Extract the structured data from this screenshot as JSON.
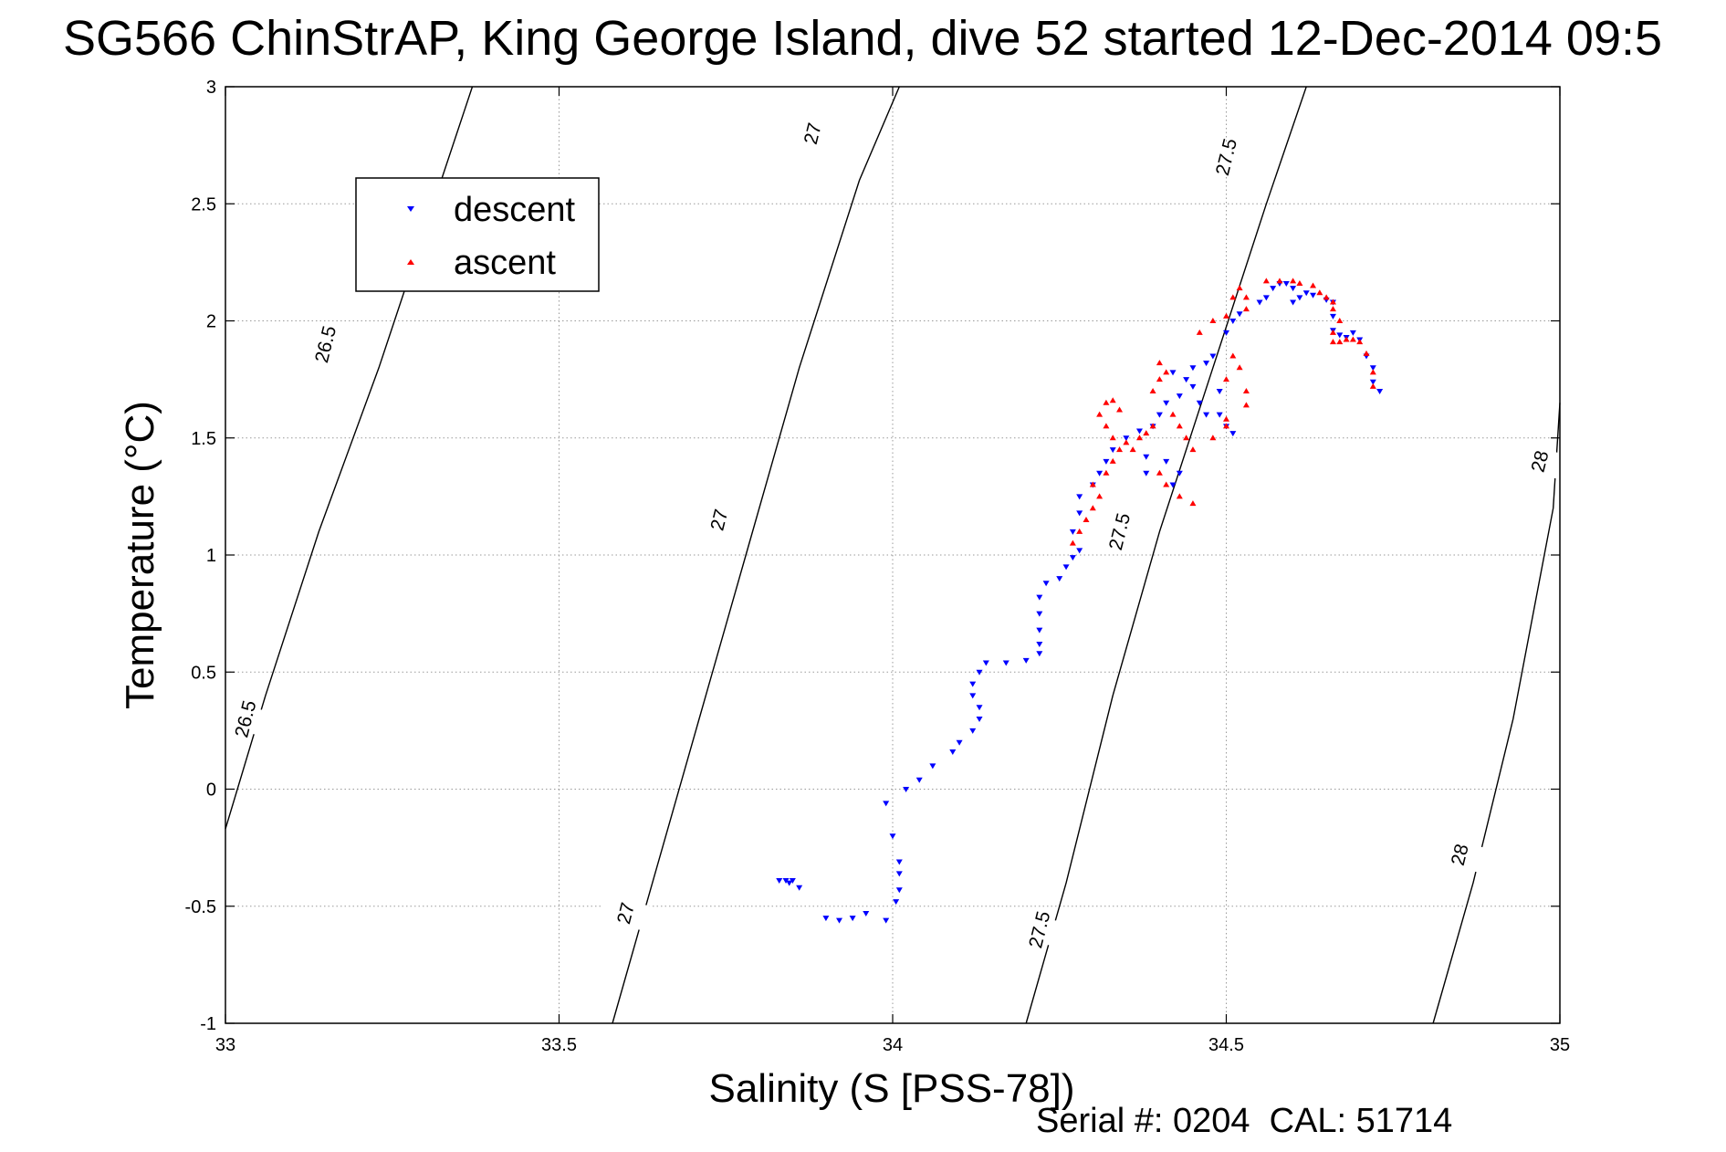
{
  "chart_data": {
    "type": "scatter",
    "title": "SG566 ChinStrAP, King George Island, dive 52 started 12-Dec-2014 09:5",
    "xlabel": "Salinity (S [PSS-78])",
    "ylabel": "Temperature (°C)",
    "xlim": [
      33,
      35
    ],
    "ylim": [
      -1,
      3
    ],
    "xticks": [
      33,
      33.5,
      34,
      34.5,
      35
    ],
    "xtick_labels": [
      "33",
      "33.5",
      "34",
      "34.5",
      "35"
    ],
    "yticks": [
      -1,
      -0.5,
      0,
      0.5,
      1,
      1.5,
      2,
      2.5,
      3
    ],
    "ytick_labels": [
      "-1",
      "-0.5",
      "0",
      "0.5",
      "1",
      "1.5",
      "2",
      "2.5",
      "3"
    ],
    "grid": true,
    "legend": "upper-left",
    "footnote": "Serial #: 0204  CAL: 51714",
    "colors": {
      "descent": "#0000ff",
      "ascent": "#ff0000",
      "contour": "#000000"
    },
    "isopycnals": [
      {
        "label": "26.5",
        "points": [
          [
            33.0,
            -0.17
          ],
          [
            33.06,
            0.4
          ],
          [
            33.14,
            1.1
          ],
          [
            33.23,
            1.8
          ],
          [
            33.3,
            2.4
          ],
          [
            33.37,
            3.0
          ]
        ]
      },
      {
        "label": "27",
        "points": [
          [
            33.58,
            -1.0
          ],
          [
            33.64,
            -0.4
          ],
          [
            33.71,
            0.3
          ],
          [
            33.78,
            1.0
          ],
          [
            33.86,
            1.8
          ],
          [
            33.95,
            2.6
          ],
          [
            34.01,
            3.0
          ]
        ]
      },
      {
        "label": "27.5",
        "points": [
          [
            34.2,
            -1.0
          ],
          [
            34.26,
            -0.4
          ],
          [
            34.33,
            0.4
          ],
          [
            34.4,
            1.1
          ],
          [
            34.48,
            1.8
          ],
          [
            34.56,
            2.5
          ],
          [
            34.62,
            3.0
          ]
        ]
      },
      {
        "label": "28",
        "points": [
          [
            34.81,
            -1.0
          ],
          [
            34.87,
            -0.4
          ],
          [
            34.93,
            0.3
          ],
          [
            34.99,
            1.2
          ],
          [
            35.0,
            1.65
          ]
        ]
      }
    ],
    "contour_labels": [
      {
        "text": "26.5",
        "x": 33.03,
        "y": 0.3
      },
      {
        "text": "26.5",
        "x": 33.15,
        "y": 1.9
      },
      {
        "text": "27",
        "x": 33.6,
        "y": -0.53
      },
      {
        "text": "27",
        "x": 33.74,
        "y": 1.15
      },
      {
        "text": "27",
        "x": 33.88,
        "y": 2.8
      },
      {
        "text": "27.5",
        "x": 34.22,
        "y": -0.6
      },
      {
        "text": "27.5",
        "x": 34.34,
        "y": 1.1
      },
      {
        "text": "27.5",
        "x": 34.5,
        "y": 2.7
      },
      {
        "text": "28",
        "x": 34.85,
        "y": -0.28
      },
      {
        "text": "28",
        "x": 34.97,
        "y": 1.4
      }
    ],
    "series": [
      {
        "name": "descent",
        "marker": "triangle-down",
        "points": [
          [
            33.83,
            -0.39
          ],
          [
            33.84,
            -0.39
          ],
          [
            33.845,
            -0.4
          ],
          [
            33.85,
            -0.39
          ],
          [
            33.86,
            -0.42
          ],
          [
            33.9,
            -0.55
          ],
          [
            33.92,
            -0.56
          ],
          [
            33.94,
            -0.55
          ],
          [
            33.96,
            -0.53
          ],
          [
            33.99,
            -0.56
          ],
          [
            34.005,
            -0.48
          ],
          [
            34.01,
            -0.43
          ],
          [
            34.01,
            -0.36
          ],
          [
            34.01,
            -0.31
          ],
          [
            34.0,
            -0.2
          ],
          [
            33.99,
            -0.06
          ],
          [
            34.02,
            0.0
          ],
          [
            34.04,
            0.04
          ],
          [
            34.06,
            0.1
          ],
          [
            34.09,
            0.16
          ],
          [
            34.1,
            0.2
          ],
          [
            34.12,
            0.25
          ],
          [
            34.13,
            0.3
          ],
          [
            34.13,
            0.35
          ],
          [
            34.12,
            0.4
          ],
          [
            34.12,
            0.45
          ],
          [
            34.13,
            0.5
          ],
          [
            34.14,
            0.54
          ],
          [
            34.17,
            0.54
          ],
          [
            34.2,
            0.55
          ],
          [
            34.22,
            0.58
          ],
          [
            34.22,
            0.62
          ],
          [
            34.22,
            0.68
          ],
          [
            34.22,
            0.75
          ],
          [
            34.22,
            0.82
          ],
          [
            34.23,
            0.88
          ],
          [
            34.25,
            0.9
          ],
          [
            34.26,
            0.95
          ],
          [
            34.27,
            0.99
          ],
          [
            34.28,
            1.02
          ],
          [
            34.27,
            1.1
          ],
          [
            34.28,
            1.18
          ],
          [
            34.28,
            1.25
          ],
          [
            34.3,
            1.3
          ],
          [
            34.31,
            1.35
          ],
          [
            34.32,
            1.4
          ],
          [
            34.33,
            1.45
          ],
          [
            34.35,
            1.5
          ],
          [
            34.37,
            1.53
          ],
          [
            34.39,
            1.55
          ],
          [
            34.4,
            1.6
          ],
          [
            34.41,
            1.65
          ],
          [
            34.43,
            1.68
          ],
          [
            34.45,
            1.72
          ],
          [
            34.44,
            1.75
          ],
          [
            34.42,
            1.78
          ],
          [
            34.45,
            1.8
          ],
          [
            34.47,
            1.82
          ],
          [
            34.48,
            1.85
          ],
          [
            34.46,
            1.65
          ],
          [
            34.47,
            1.6
          ],
          [
            34.49,
            1.7
          ],
          [
            34.49,
            1.6
          ],
          [
            34.5,
            1.55
          ],
          [
            34.51,
            1.52
          ],
          [
            34.41,
            1.4
          ],
          [
            34.43,
            1.35
          ],
          [
            34.42,
            1.3
          ],
          [
            34.38,
            1.42
          ],
          [
            34.38,
            1.35
          ],
          [
            34.5,
            1.95
          ],
          [
            34.51,
            2.0
          ],
          [
            34.52,
            2.03
          ],
          [
            34.55,
            2.08
          ],
          [
            34.56,
            2.1
          ],
          [
            34.57,
            2.14
          ],
          [
            34.58,
            2.16
          ],
          [
            34.59,
            2.16
          ],
          [
            34.6,
            2.14
          ],
          [
            34.6,
            2.08
          ],
          [
            34.61,
            2.1
          ],
          [
            34.62,
            2.12
          ],
          [
            34.63,
            2.11
          ],
          [
            34.65,
            2.09
          ],
          [
            34.66,
            2.08
          ],
          [
            34.66,
            2.02
          ],
          [
            34.66,
            1.96
          ],
          [
            34.67,
            1.94
          ],
          [
            34.68,
            1.93
          ],
          [
            34.69,
            1.95
          ],
          [
            34.7,
            1.92
          ],
          [
            34.71,
            1.85
          ],
          [
            34.72,
            1.8
          ],
          [
            34.72,
            1.74
          ],
          [
            34.73,
            1.7
          ]
        ]
      },
      {
        "name": "ascent",
        "marker": "triangle-up",
        "points": [
          [
            34.27,
            1.05
          ],
          [
            34.28,
            1.1
          ],
          [
            34.29,
            1.15
          ],
          [
            34.3,
            1.2
          ],
          [
            34.31,
            1.25
          ],
          [
            34.3,
            1.3
          ],
          [
            34.32,
            1.35
          ],
          [
            34.33,
            1.4
          ],
          [
            34.34,
            1.45
          ],
          [
            34.33,
            1.5
          ],
          [
            34.32,
            1.55
          ],
          [
            34.31,
            1.6
          ],
          [
            34.32,
            1.65
          ],
          [
            34.33,
            1.66
          ],
          [
            34.34,
            1.62
          ],
          [
            34.35,
            1.48
          ],
          [
            34.36,
            1.45
          ],
          [
            34.37,
            1.5
          ],
          [
            34.38,
            1.52
          ],
          [
            34.39,
            1.55
          ],
          [
            34.39,
            1.7
          ],
          [
            34.4,
            1.75
          ],
          [
            34.41,
            1.78
          ],
          [
            34.4,
            1.82
          ],
          [
            34.42,
            1.6
          ],
          [
            34.43,
            1.55
          ],
          [
            34.44,
            1.5
          ],
          [
            34.45,
            1.45
          ],
          [
            34.4,
            1.35
          ],
          [
            34.41,
            1.3
          ],
          [
            34.43,
            1.25
          ],
          [
            34.45,
            1.22
          ],
          [
            34.48,
            1.5
          ],
          [
            34.5,
            1.55
          ],
          [
            34.5,
            1.58
          ],
          [
            34.46,
            1.95
          ],
          [
            34.48,
            2.0
          ],
          [
            34.5,
            2.02
          ],
          [
            34.51,
            2.1
          ],
          [
            34.52,
            2.14
          ],
          [
            34.53,
            2.1
          ],
          [
            34.53,
            2.05
          ],
          [
            34.51,
            1.85
          ],
          [
            34.52,
            1.8
          ],
          [
            34.5,
            1.75
          ],
          [
            34.53,
            1.7
          ],
          [
            34.53,
            1.64
          ],
          [
            34.56,
            2.17
          ],
          [
            34.58,
            2.17
          ],
          [
            34.6,
            2.17
          ],
          [
            34.61,
            2.16
          ],
          [
            34.63,
            2.15
          ],
          [
            34.64,
            2.12
          ],
          [
            34.65,
            2.1
          ],
          [
            34.66,
            2.08
          ],
          [
            34.66,
            2.05
          ],
          [
            34.67,
            2.0
          ],
          [
            34.66,
            1.95
          ],
          [
            34.66,
            1.91
          ],
          [
            34.67,
            1.91
          ],
          [
            34.68,
            1.92
          ],
          [
            34.69,
            1.92
          ],
          [
            34.7,
            1.91
          ],
          [
            34.71,
            1.86
          ],
          [
            34.72,
            1.78
          ],
          [
            34.72,
            1.72
          ]
        ]
      }
    ]
  }
}
